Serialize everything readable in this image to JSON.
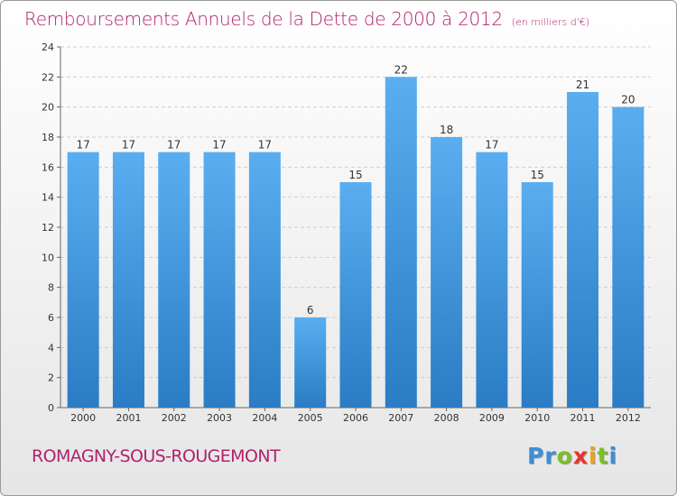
{
  "title": "Remboursements Annuels de la Dette de 2000 à 2012",
  "subtitle": "(en milliers d'€)",
  "commune": "ROMAGNY-SOUS-ROUGEMONT",
  "logo": {
    "letters": [
      {
        "ch": "P",
        "color": "#3b8fd8"
      },
      {
        "ch": "r",
        "color": "#3b8fd8"
      },
      {
        "ch": "o",
        "color": "#7cbf2a"
      },
      {
        "ch": "x",
        "color": "#e8332f"
      },
      {
        "ch": "i",
        "color": "#f0a21a"
      },
      {
        "ch": "t",
        "color": "#7cbf2a"
      },
      {
        "ch": "i",
        "color": "#3b8fd8"
      }
    ]
  },
  "colors": {
    "accent": "#b0226e",
    "bar_top": "#5aaef0",
    "bar_bottom": "#2a7cc4",
    "grid": "#cfcfcf"
  },
  "chart_data": {
    "type": "bar",
    "categories": [
      "2000",
      "2001",
      "2002",
      "2003",
      "2004",
      "2005",
      "2006",
      "2007",
      "2008",
      "2009",
      "2010",
      "2011",
      "2012"
    ],
    "values": [
      17,
      17,
      17,
      17,
      17,
      6,
      15,
      22,
      18,
      17,
      15,
      21,
      20
    ],
    "ylim": [
      0,
      24
    ],
    "yticks": [
      0,
      2,
      4,
      6,
      8,
      10,
      12,
      14,
      16,
      18,
      20,
      22,
      24
    ],
    "grid": true,
    "data_labels": true
  }
}
